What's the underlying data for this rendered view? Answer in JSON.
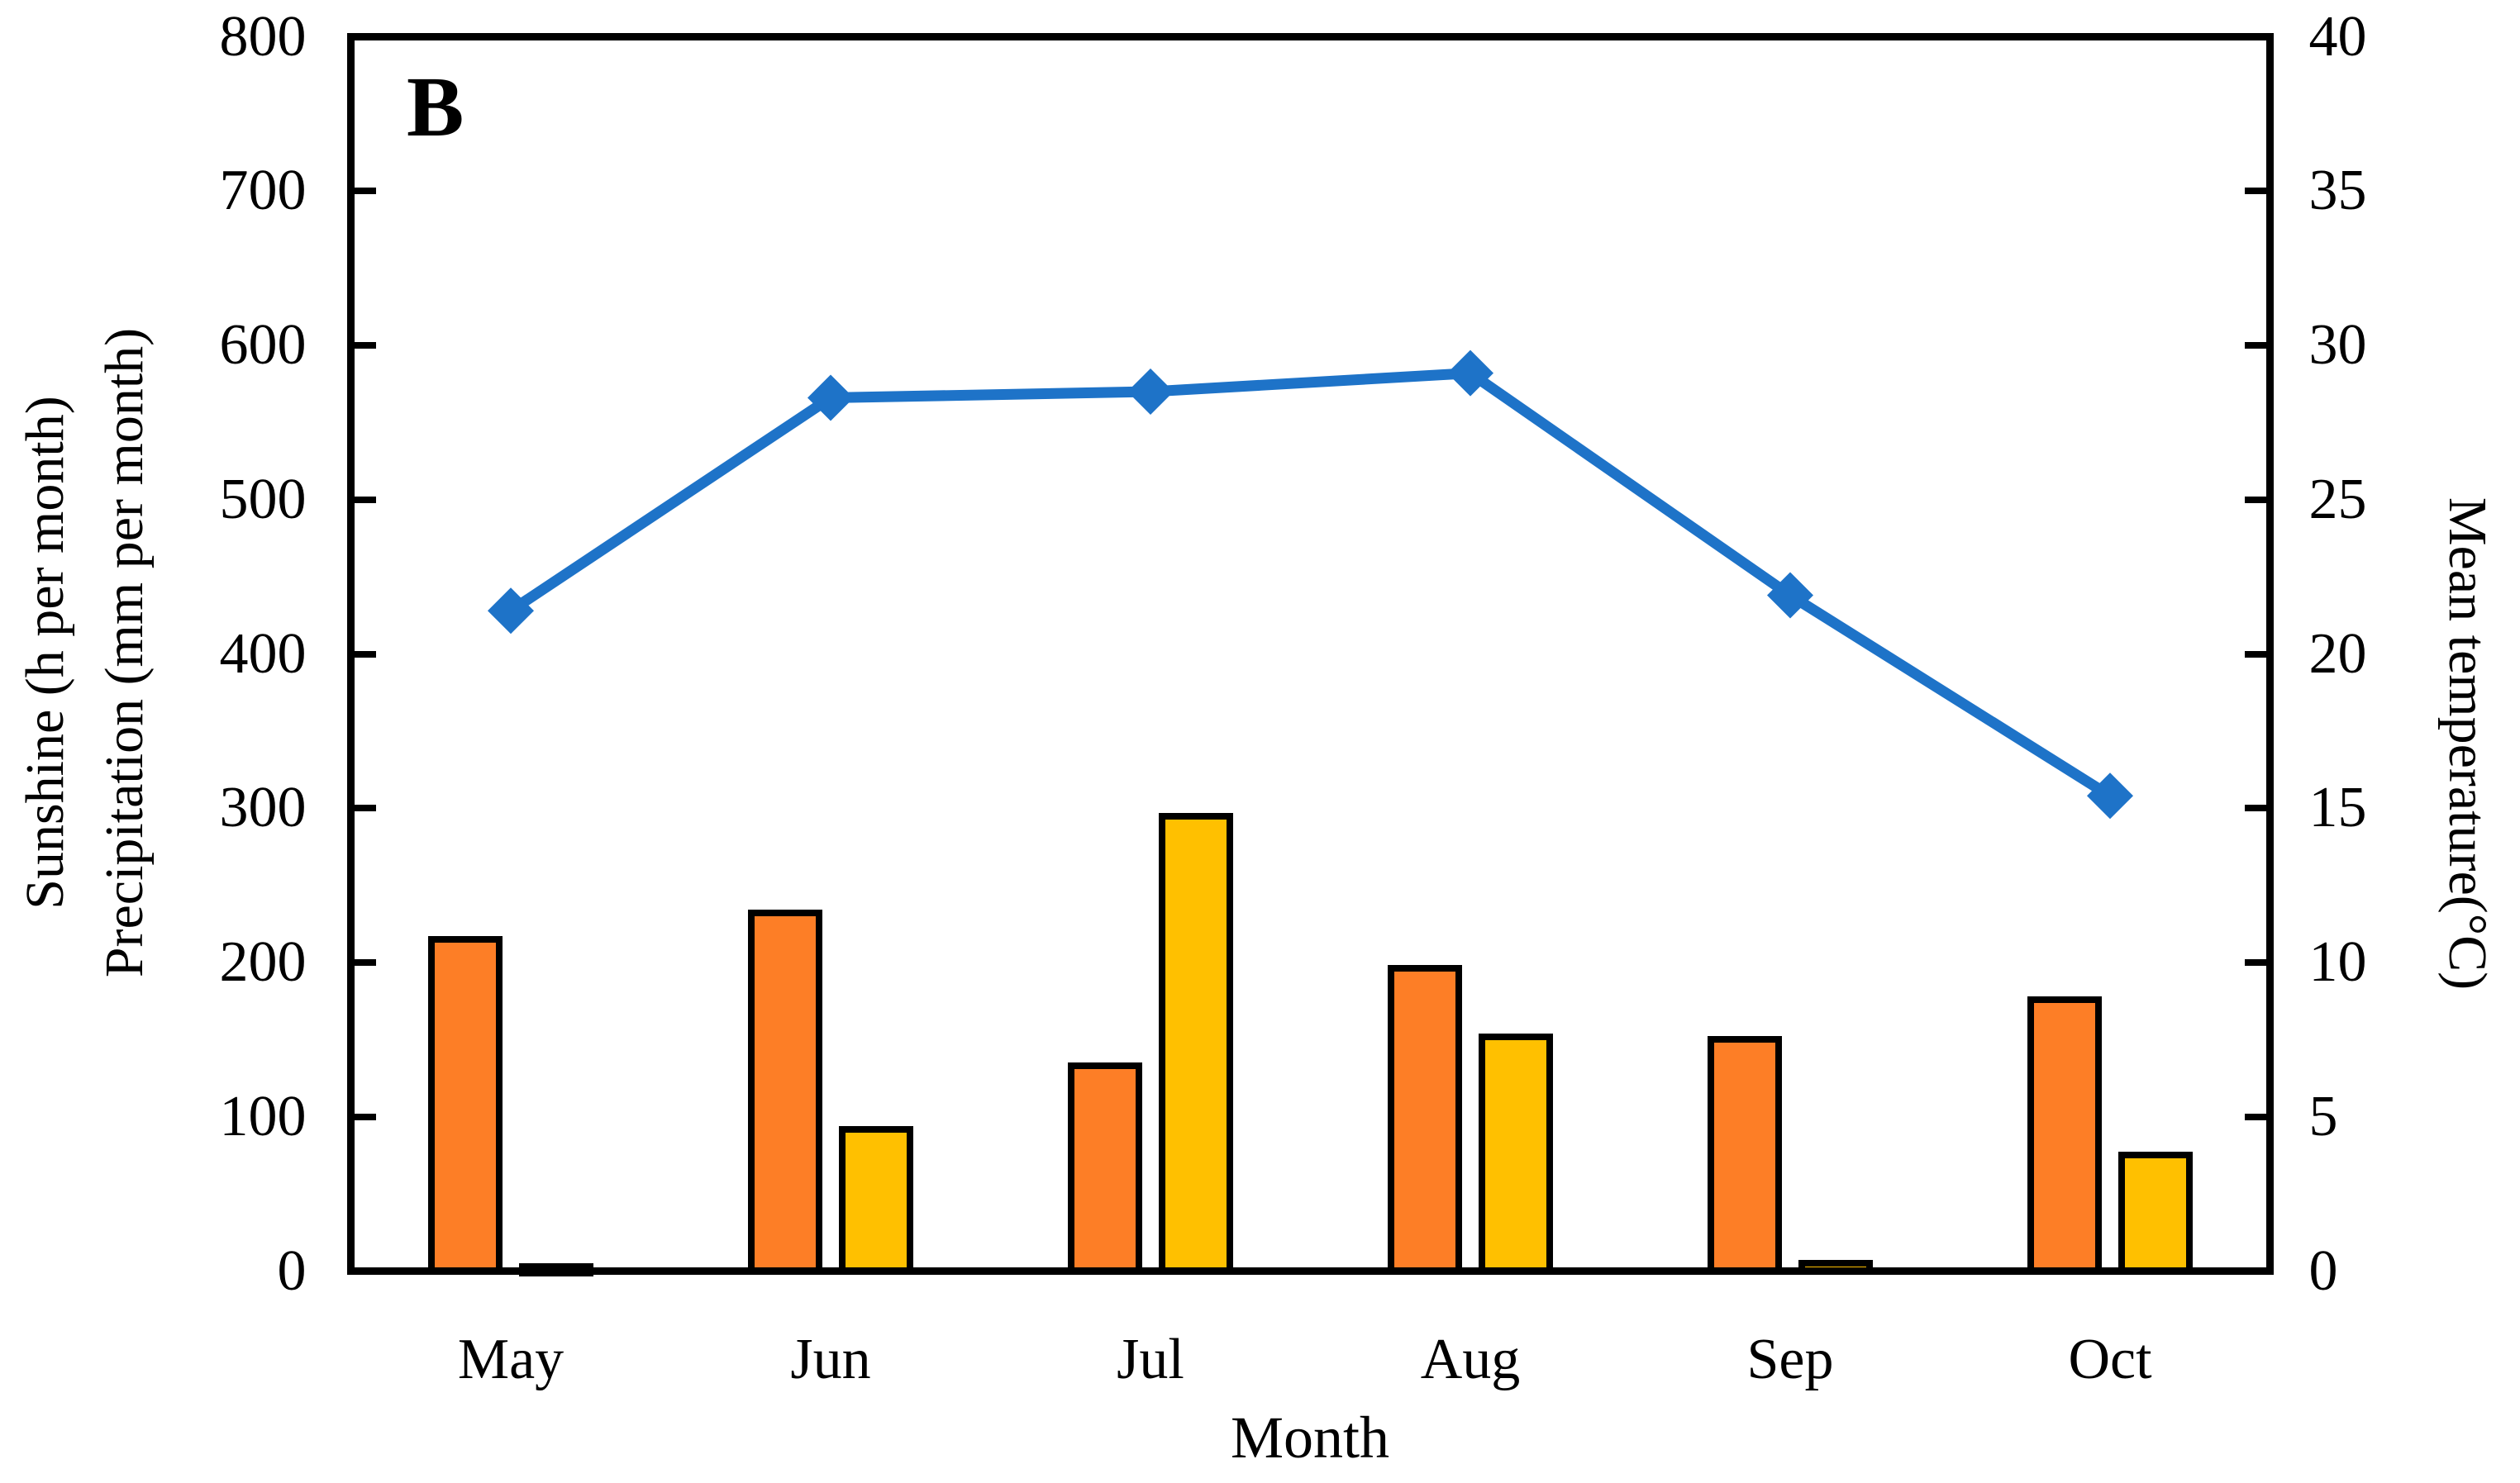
{
  "panel_label": "B",
  "chart_data": {
    "type": "combo-bar-line",
    "categories": [
      "May",
      "Jun",
      "Jul",
      "Aug",
      "Sep",
      "Oct"
    ],
    "series": [
      {
        "name": "Sunshine",
        "type": "bar",
        "axis": "left",
        "color": "#FD7E26",
        "values": [
          215,
          232,
          133,
          196,
          150,
          176
        ]
      },
      {
        "name": "Precipitation",
        "type": "bar",
        "axis": "left",
        "color": "#FFC000",
        "values": [
          3,
          92,
          295,
          152,
          5,
          75
        ]
      },
      {
        "name": "Mean temperature",
        "type": "line",
        "axis": "right",
        "color": "#1E73C8",
        "marker": "diamond",
        "values": [
          21.4,
          28.3,
          28.5,
          29.1,
          21.9,
          15.4
        ]
      }
    ],
    "left_axis": {
      "title_lines": [
        "Sunshine (h per month)",
        "Precipitation (mm per month)"
      ],
      "min": 0,
      "max": 800,
      "step": 100,
      "tick_labels": [
        "0",
        "100",
        "200",
        "300",
        "400",
        "500",
        "600",
        "700",
        "800"
      ]
    },
    "right_axis": {
      "title": "Mean temperature(°C)",
      "min": 0,
      "max": 40,
      "step": 5,
      "tick_labels": [
        "0",
        "5",
        "10",
        "15",
        "20",
        "25",
        "30",
        "35",
        "40"
      ]
    },
    "x_axis": {
      "title": "Month"
    },
    "grid": false,
    "legend": false,
    "plot_border": true
  }
}
